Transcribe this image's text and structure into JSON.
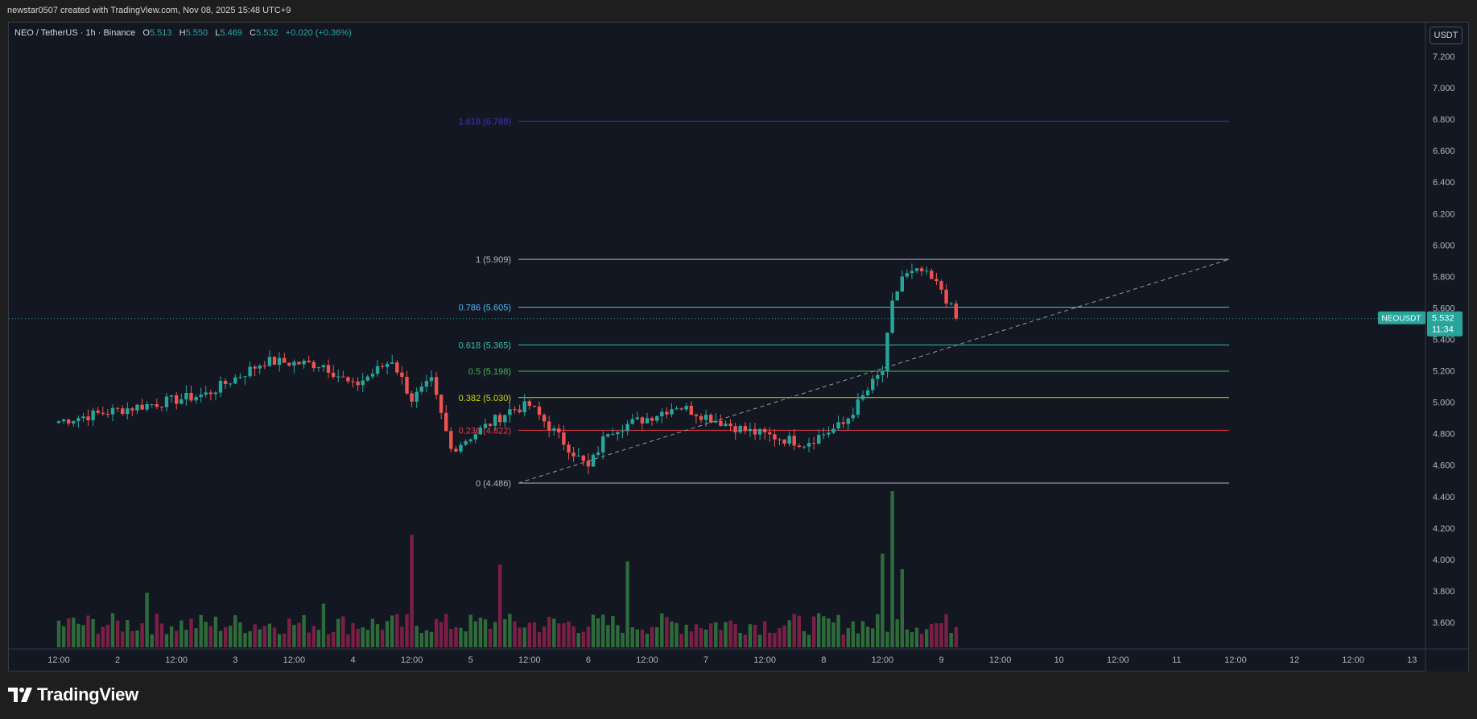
{
  "header": {
    "credit": "newstar0507 created with TradingView.com, Nov 08, 2025 15:48 UTC+9"
  },
  "legend": {
    "symbol": "NEO / TetherUS · 1h · Binance",
    "open_label": "O",
    "open": "5.513",
    "high_label": "H",
    "high": "5.550",
    "low_label": "L",
    "low": "5.469",
    "close_label": "C",
    "close": "5.532",
    "change": "+0.020 (+0.36%)"
  },
  "currency_button": "USDT",
  "price_tag": {
    "symbol": "NEOUSDT",
    "price": "5.532",
    "countdown": "11:34"
  },
  "brand": {
    "name": "TradingView"
  },
  "colors": {
    "background": "#131722",
    "up": "#26a69a",
    "down": "#ef5350",
    "up_volume": "#2e6b3a",
    "down_volume": "#7b1f45",
    "fib_0": "#b2b5be",
    "fib_0236": "#f23645",
    "fib_0382": "#c6d80a",
    "fib_05": "#4caf50",
    "fib_0618": "#2dc3a6",
    "fib_0786": "#4db6f5",
    "fib_1": "#b2b5be",
    "fib_1618": "#3b33c8"
  },
  "chart_data": {
    "type": "candlestick",
    "title": "NEO / TetherUS · 1h · Binance",
    "ylim": [
      3.45,
      7.28
    ],
    "x_ticks": [
      "12:00",
      "2",
      "12:00",
      "3",
      "12:00",
      "4",
      "12:00",
      "5",
      "12:00",
      "6",
      "12:00",
      "7",
      "12:00",
      "8",
      "12:00",
      "9",
      "12:00",
      "10",
      "12:00",
      "11",
      "12:00",
      "12",
      "12:00",
      "13"
    ],
    "y_ticks": [
      "3.600",
      "3.800",
      "4.000",
      "4.200",
      "4.400",
      "4.600",
      "4.800",
      "5.000",
      "5.200",
      "5.400",
      "5.600",
      "5.800",
      "6.000",
      "6.200",
      "6.400",
      "6.600",
      "6.800",
      "7.000",
      "7.200"
    ],
    "fib_levels": [
      {
        "label": "1.618 (6.788)",
        "level": 1.618,
        "price": 6.788
      },
      {
        "label": "1 (5.909)",
        "level": 1,
        "price": 5.909
      },
      {
        "label": "0.786 (5.605)",
        "level": 0.786,
        "price": 5.605
      },
      {
        "label": "0.618 (5.365)",
        "level": 0.618,
        "price": 5.365
      },
      {
        "label": "0.5 (5.198)",
        "level": 0.5,
        "price": 5.198
      },
      {
        "label": "0.382 (5.030)",
        "level": 0.382,
        "price": 5.03
      },
      {
        "label": "0.236 (4.822)",
        "level": 0.236,
        "price": 4.822
      },
      {
        "label": "0 (4.486)",
        "level": 0,
        "price": 4.486
      }
    ],
    "fib_anchor_low": {
      "day": 5.5,
      "hour": 12,
      "price": 4.486
    },
    "fib_anchor_high": {
      "day": 8,
      "hour": 8,
      "price": 5.909
    },
    "current_price": 5.532,
    "key_points": [
      {
        "day": 1,
        "hour": 0,
        "price": 4.88
      },
      {
        "day": 1,
        "hour": 12,
        "price": 4.95
      },
      {
        "day": 2,
        "hour": 6,
        "price": 5.05
      },
      {
        "day": 2,
        "hour": 18,
        "price": 5.26
      },
      {
        "day": 3,
        "hour": 6,
        "price": 5.24
      },
      {
        "day": 3,
        "hour": 12,
        "price": 5.1
      },
      {
        "day": 3,
        "hour": 20,
        "price": 5.27
      },
      {
        "day": 4,
        "hour": 0,
        "price": 5.02
      },
      {
        "day": 4,
        "hour": 4,
        "price": 5.13
      },
      {
        "day": 4,
        "hour": 8,
        "price": 4.7
      },
      {
        "day": 4,
        "hour": 20,
        "price": 4.95
      },
      {
        "day": 5,
        "hour": 0,
        "price": 4.98
      },
      {
        "day": 5,
        "hour": 12,
        "price": 4.58
      },
      {
        "day": 5,
        "hour": 16,
        "price": 4.82
      },
      {
        "day": 6,
        "hour": 0,
        "price": 4.9
      },
      {
        "day": 6,
        "hour": 6,
        "price": 4.98
      },
      {
        "day": 6,
        "hour": 20,
        "price": 4.82
      },
      {
        "day": 7,
        "hour": 8,
        "price": 4.74
      },
      {
        "day": 7,
        "hour": 16,
        "price": 4.86
      },
      {
        "day": 7,
        "hour": 22,
        "price": 5.12
      },
      {
        "day": 8,
        "hour": 0,
        "price": 5.2
      },
      {
        "day": 8,
        "hour": 2,
        "price": 5.62
      },
      {
        "day": 8,
        "hour": 4,
        "price": 5.8
      },
      {
        "day": 8,
        "hour": 8,
        "price": 5.83
      },
      {
        "day": 8,
        "hour": 12,
        "price": 5.72
      },
      {
        "day": 8,
        "hour": 15,
        "price": 5.532
      }
    ],
    "volume_spikes": [
      {
        "day": 1,
        "hour": 18,
        "value": 0.35
      },
      {
        "day": 3,
        "hour": 6,
        "value": 0.28
      },
      {
        "day": 4,
        "hour": 0,
        "value": 0.72
      },
      {
        "day": 4,
        "hour": 18,
        "value": 0.53
      },
      {
        "day": 5,
        "hour": 20,
        "value": 0.55
      },
      {
        "day": 8,
        "hour": 0,
        "value": 0.6
      },
      {
        "day": 8,
        "hour": 2,
        "value": 1.0
      },
      {
        "day": 8,
        "hour": 4,
        "value": 0.5
      }
    ]
  }
}
